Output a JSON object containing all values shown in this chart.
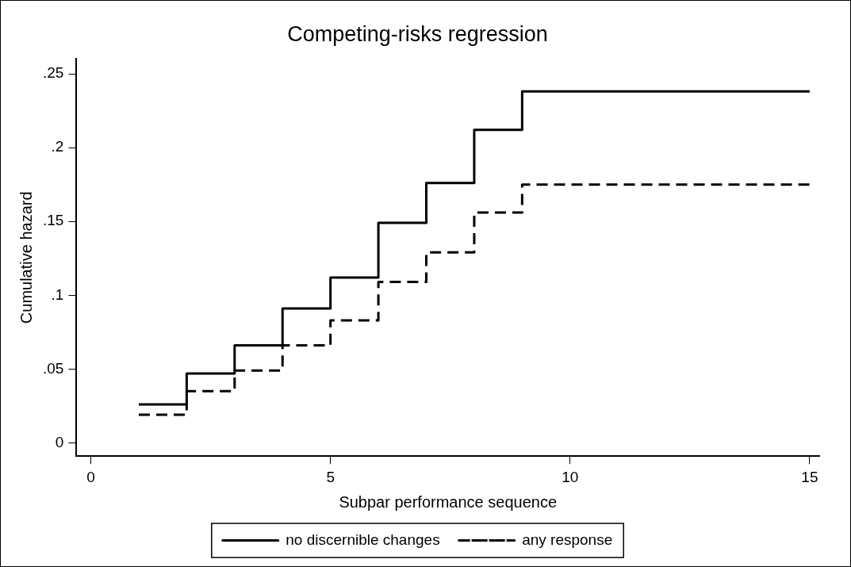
{
  "chart_data": {
    "type": "step",
    "title": "Competing-risks regression",
    "xlabel": "Subpar performance sequence",
    "ylabel": "Cumulative hazard",
    "x": [
      1,
      2,
      3,
      4,
      5,
      6,
      7,
      8,
      9,
      15
    ],
    "series": [
      {
        "name": "no discernible changes",
        "color": "#000000",
        "line_style": "solid",
        "values": [
          0.026,
          0.047,
          0.066,
          0.091,
          0.112,
          0.149,
          0.176,
          0.212,
          0.238,
          0.238
        ]
      },
      {
        "name": "any response",
        "color": "#000000",
        "line_style": "dashed",
        "values": [
          0.019,
          0.035,
          0.049,
          0.066,
          0.083,
          0.109,
          0.129,
          0.156,
          0.175,
          0.175
        ]
      }
    ],
    "xlim": [
      -0.3,
      15.2
    ],
    "xticks": [
      0,
      5,
      10,
      15
    ],
    "ylim": [
      -0.009,
      0.26
    ],
    "yticks": [
      0,
      {
        "value": 0.05,
        "label": ".05"
      },
      {
        "value": 0.1,
        "label": ".1"
      },
      {
        "value": 0.15,
        "label": ".15"
      },
      {
        "value": 0.2,
        "label": ".2"
      },
      {
        "value": 0.25,
        "label": ".25"
      }
    ],
    "grid": false,
    "legend": "bottom",
    "marker": "none"
  }
}
